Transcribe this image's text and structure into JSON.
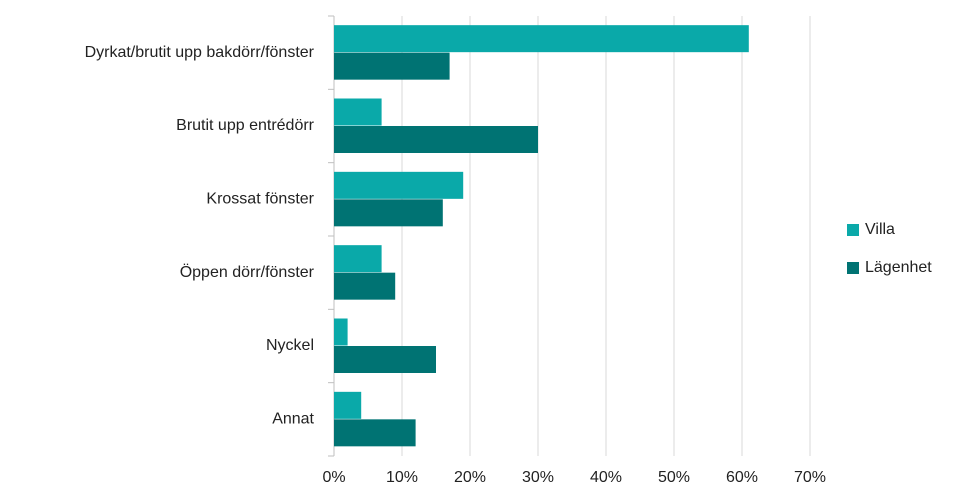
{
  "chart_data": {
    "type": "bar",
    "orientation": "horizontal",
    "categories": [
      "Dyrkat/brutit upp bakdörr/fönster",
      "Brutit upp entrédörr",
      "Krossat fönster",
      "Öppen dörr/fönster",
      "Nyckel",
      "Annat"
    ],
    "series": [
      {
        "name": "Villa",
        "color": "#0aa9a9",
        "values": [
          61,
          7,
          19,
          7,
          2,
          4
        ]
      },
      {
        "name": "Lägenhet",
        "color": "#007373",
        "values": [
          17,
          30,
          16,
          9,
          15,
          12
        ]
      }
    ],
    "xlim": [
      0,
      70
    ],
    "xticks": [
      {
        "value": 0,
        "label": "0%"
      },
      {
        "value": 10,
        "label": "10%"
      },
      {
        "value": 20,
        "label": "20%"
      },
      {
        "value": 30,
        "label": "30%"
      },
      {
        "value": 40,
        "label": "40%"
      },
      {
        "value": 50,
        "label": "50%"
      },
      {
        "value": 60,
        "label": "60%"
      },
      {
        "value": 70,
        "label": "70%"
      }
    ],
    "grid": true,
    "legend": "right"
  }
}
